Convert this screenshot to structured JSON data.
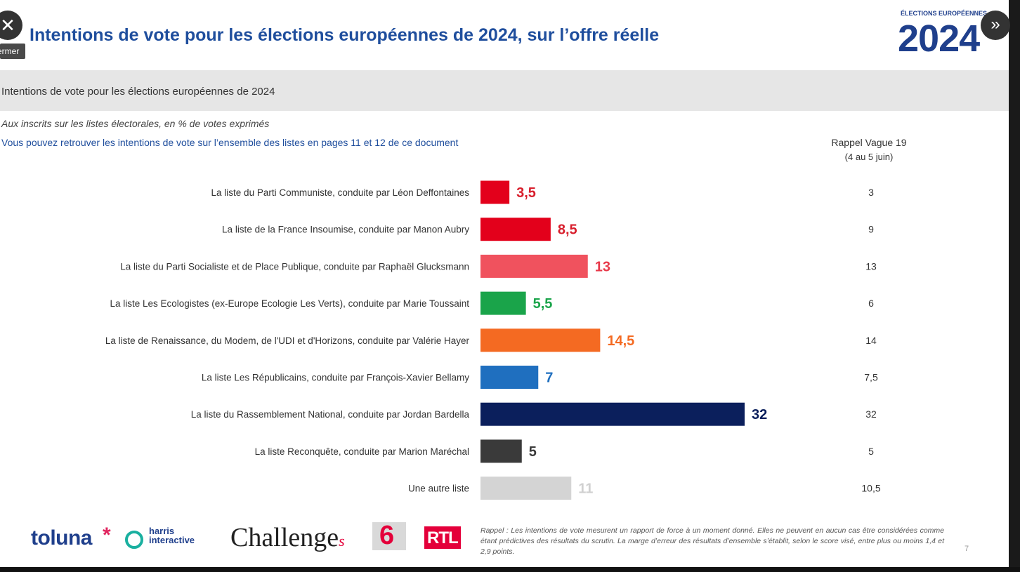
{
  "header": {
    "title": "Intentions de vote pour les élections européennes de 2024, sur l’offre réelle",
    "logo_top": "ÉLECTIONS EUROPÉENNES",
    "logo_year": "2024"
  },
  "band": {
    "text": "Intentions de vote pour les élections européennes de 2024"
  },
  "subtitles": {
    "line1": "Aux inscrits sur les listes électorales, en % de votes exprimés",
    "line2": "Vous pouvez retrouver les intentions de vote sur l’ensemble des listes en pages 11 et 12 de ce document"
  },
  "rappel": {
    "header1": "Rappel Vague 19",
    "header2": "(4 au 5 juin)"
  },
  "chart_data": {
    "type": "bar",
    "orientation": "horizontal",
    "categories": [
      "La liste du Parti Communiste, conduite par Léon Deffontaines",
      "La liste de la France Insoumise, conduite par Manon Aubry",
      "La liste du Parti Socialiste et de Place Publique, conduite par Raphaël Glucksmann",
      "La liste Les Ecologistes (ex-Europe Ecologie Les Verts), conduite par Marie Toussaint",
      "La liste de Renaissance, du Modem, de l'UDI et d'Horizons, conduite par Valérie Hayer",
      "La liste Les Républicains, conduite par François-Xavier Bellamy",
      "La liste du Rassemblement National, conduite par Jordan Bardella",
      "La liste Reconquête, conduite par Marion Maréchal",
      "Une autre liste"
    ],
    "values": [
      3.5,
      8.5,
      13,
      5.5,
      14.5,
      7,
      32,
      5,
      11
    ],
    "value_labels": [
      "3,5",
      "8,5",
      "13",
      "5,5",
      "14,5",
      "7",
      "32",
      "5",
      "11"
    ],
    "previous_values": [
      3,
      9,
      13,
      6,
      14,
      7.5,
      32,
      5,
      10.5
    ],
    "previous_labels": [
      "3",
      "9",
      "13",
      "6",
      "14",
      "7,5",
      "32",
      "5",
      "10,5"
    ],
    "colors": [
      "#e3001b",
      "#e3001b",
      "#f0525e",
      "#1aa44a",
      "#f46a22",
      "#1f6fbf",
      "#0b1f5c",
      "#3a3a3a",
      "#d4d4d4"
    ],
    "label_colors": [
      "#d81e2c",
      "#d81e2c",
      "#e8394a",
      "#1aa44a",
      "#f46a22",
      "#1f6fbf",
      "#0b1f5c",
      "#3a3a3a",
      "#d0d0d0"
    ],
    "xlim": [
      0,
      32
    ]
  },
  "footer": {
    "toluna": "toluna",
    "toluna_star": "*",
    "harris": "harris\ninteractive",
    "challenges": "Challenge",
    "challenges_s": "s",
    "m6": "6",
    "rtl": "RTL",
    "disclaimer": "Rappel : Les intentions de vote mesurent un rapport de force à un moment donné. Elles ne peuvent en aucun cas être considérées comme étant prédictives des résultats du scrutin. La marge d’erreur des résultats d’ensemble s’établit, selon le score visé, entre plus ou moins 1,4 et 2,9 points.",
    "page_number": "7"
  },
  "controls": {
    "close_icon": "✕",
    "close_tooltip": "ermer",
    "next_icon": "»"
  }
}
